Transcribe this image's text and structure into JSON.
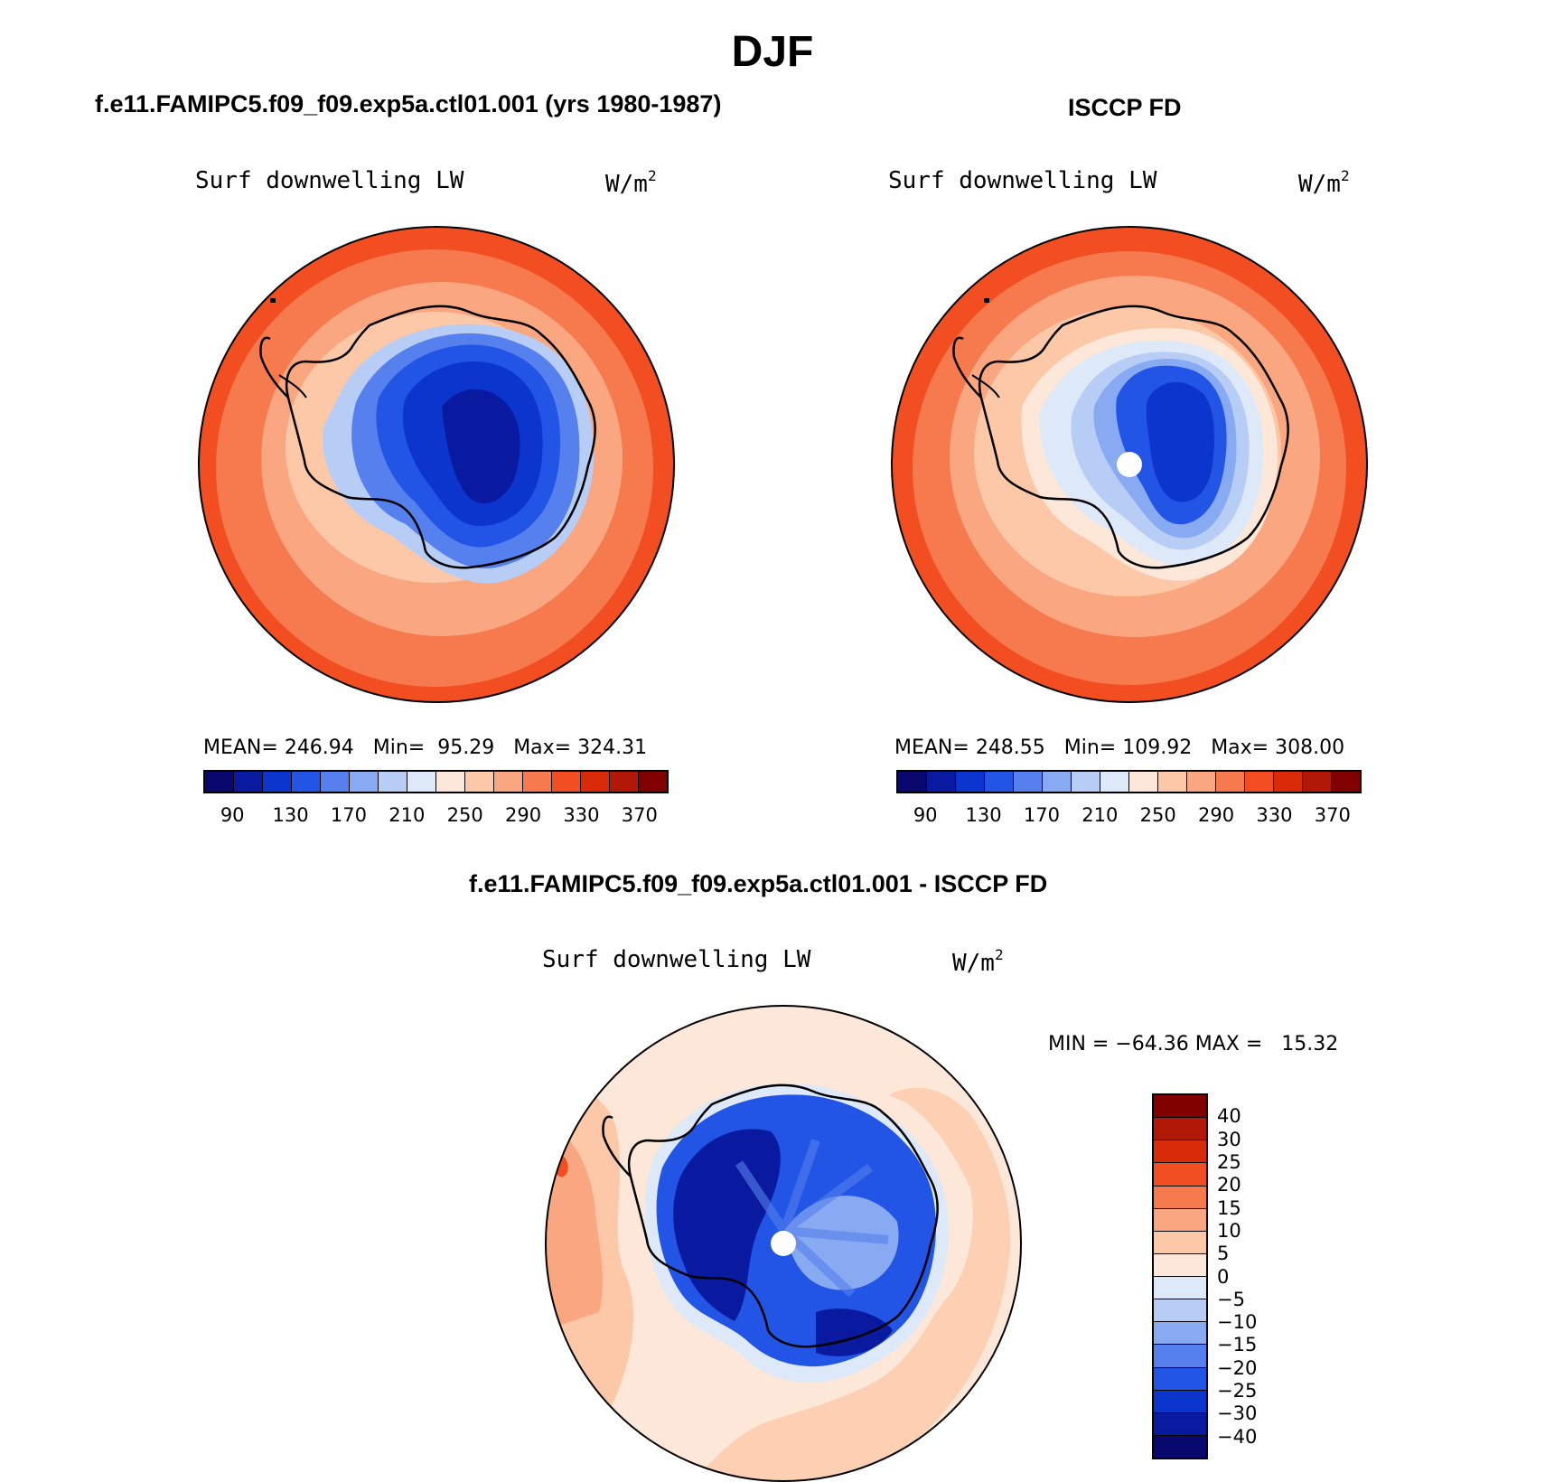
{
  "title": "DJF",
  "panels": [
    {
      "title": "f.e11.FAMIPC5.f09_f09.exp5a.ctl01.001 (yrs 1980-1987)",
      "variable": "Surf downwelling LW",
      "units": "W/m",
      "units_sup": "2",
      "stats": "MEAN= 246.94   Min=  95.29   Max= 324.31"
    },
    {
      "title": "ISCCP FD",
      "variable": "Surf downwelling LW",
      "units": "W/m",
      "units_sup": "2",
      "stats": "MEAN= 248.55   Min= 109.92   Max= 308.00"
    },
    {
      "title": "f.e11.FAMIPC5.f09_f09.exp5a.ctl01.001 - ISCCP FD",
      "variable": "Surf downwelling LW",
      "units": "W/m",
      "units_sup": "2",
      "stats": "MIN = −64.36 MAX =   15.32"
    }
  ],
  "colorbar_main": {
    "colors": [
      "#08086e",
      "#0a1aa0",
      "#0b35cc",
      "#2255e6",
      "#5580ee",
      "#88aaf2",
      "#b8cdf6",
      "#dde8f8",
      "#fde7d8",
      "#fcc8a8",
      "#faa680",
      "#f67a4e",
      "#f24e22",
      "#d92a0a",
      "#b21808",
      "#800000"
    ],
    "labels": [
      "90",
      "130",
      "170",
      "210",
      "250",
      "290",
      "330",
      "370"
    ]
  },
  "colorbar_diff": {
    "colors": [
      "#800000",
      "#b21808",
      "#d92a0a",
      "#f24e22",
      "#f67a4e",
      "#faa680",
      "#fcc8a8",
      "#fde7d8",
      "#dde8f8",
      "#b8cdf6",
      "#88aaf2",
      "#5580ee",
      "#2255e6",
      "#0b35cc",
      "#0a1aa0",
      "#08086e"
    ],
    "labels": [
      "40",
      "30",
      "25",
      "20",
      "15",
      "10",
      "5",
      "0",
      "−5",
      "−10",
      "−15",
      "−20",
      "−25",
      "−30",
      "−40"
    ]
  }
}
